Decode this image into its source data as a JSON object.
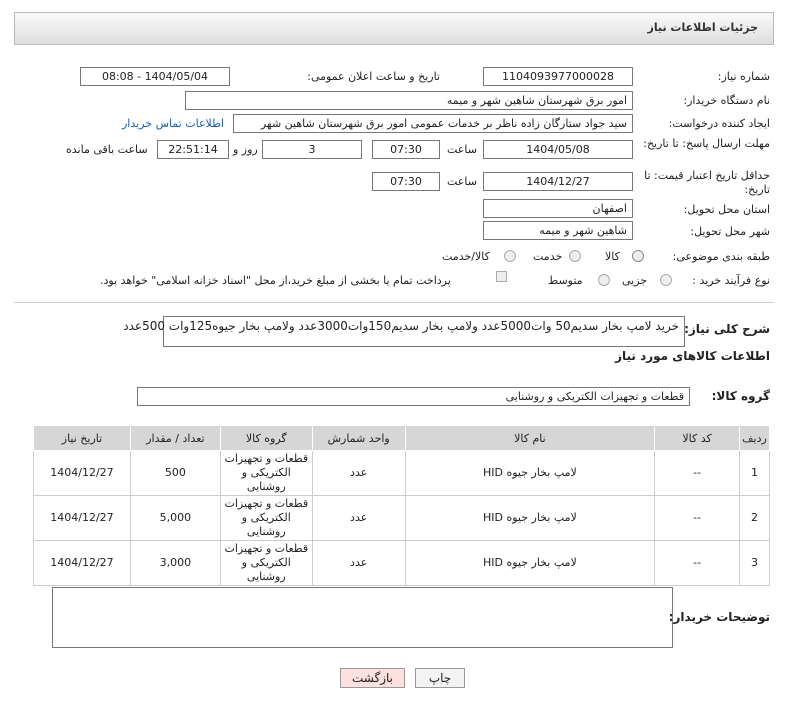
{
  "header": {
    "title": "جزئیات اطلاعات نیاز"
  },
  "form": {
    "need_number": {
      "label": "شماره نیاز:",
      "value": "1104093977000028"
    },
    "announce": {
      "label": "تاریخ و ساعت اعلان عمومی:",
      "value": "1404/05/04 - 08:08"
    },
    "buyer_org": {
      "label": "نام دستگاه خریدار:",
      "value": "امور برق شهرستان شاهین شهر و میمه"
    },
    "creator": {
      "label": "ایجاد کننده درخواست:",
      "value": "سید جواد ستارگان زاده ناظر بر خدمات عمومی امور برق شهرستان شاهین شهر",
      "link": "اطلاعات تماس خریدار"
    },
    "deadline": {
      "label": "مهلت ارسال پاسخ: تا تاریخ:",
      "date": "1404/05/08",
      "time_label": "ساعت",
      "time": "07:30",
      "days": "3",
      "days_label": "روز و",
      "remaining": "22:51:14",
      "remaining_label": "ساعت باقی مانده"
    },
    "validity": {
      "label": "حداقل تاریخ اعتبار قیمت: تا تاریخ:",
      "date": "1404/12/27",
      "time_label": "ساعت",
      "time": "07:30"
    },
    "province": {
      "label": "استان محل تحویل:",
      "value": "اصفهان"
    },
    "city": {
      "label": "شهر محل تحویل:",
      "value": "شاهین شهر و میمه"
    },
    "category": {
      "label": "طبقه بندی موضوعی:",
      "options": [
        "کالا",
        "خدمت",
        "کالا/خدمت"
      ]
    },
    "process": {
      "label": "نوع فرآیند خرید :",
      "options": [
        "جزیی",
        "متوسط"
      ],
      "note": "پرداخت تمام یا بخشی از مبلغ خرید،از محل \"اسناد خزانه اسلامی\" خواهد بود."
    },
    "description": {
      "label": "شرح کلی نیاز:",
      "value": "خرید لامپ بخار سدیم50 وات5000عدد ولامپ بخار سدیم150وات3000عدد ولامپ بخار جیوه125وات 500عدد"
    }
  },
  "goods": {
    "title": "اطلاعات کالاهای مورد نیاز",
    "group_label": "گروه کالا:",
    "group_value": "قطعات و تجهیزات الکتریکی و روشنایی"
  },
  "table": {
    "headers": [
      "ردیف",
      "کد کالا",
      "نام کالا",
      "واحد شمارش",
      "گروه کالا",
      "تعداد / مقدار",
      "تاریخ نیاز"
    ],
    "rows": [
      [
        "1",
        "--",
        "لامپ بخار جیوه HID",
        "عدد",
        "قطعات و تجهیزات الکتریکی و روشنایی",
        "500",
        "1404/12/27"
      ],
      [
        "2",
        "--",
        "لامپ بخار جیوه HID",
        "عدد",
        "قطعات و تجهیزات الکتریکی و روشنایی",
        "5,000",
        "1404/12/27"
      ],
      [
        "3",
        "--",
        "لامپ بخار جیوه HID",
        "عدد",
        "قطعات و تجهیزات الکتریکی و روشنایی",
        "3,000",
        "1404/12/27"
      ]
    ]
  },
  "notes": {
    "label": "توضیحات خریدار:"
  },
  "buttons": [
    "چاپ",
    "بازگشت"
  ]
}
